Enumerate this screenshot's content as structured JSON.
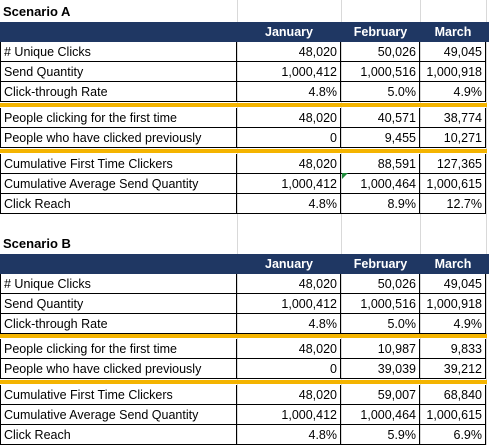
{
  "columns": [
    "January",
    "February",
    "March"
  ],
  "scenario_a": {
    "title": "Scenario A",
    "block1": [
      {
        "label": "# Unique Clicks",
        "values": [
          "48,020",
          "50,026",
          "49,045"
        ]
      },
      {
        "label": "Send Quantity",
        "values": [
          "1,000,412",
          "1,000,516",
          "1,000,918"
        ]
      },
      {
        "label": "Click-through Rate",
        "values": [
          "4.8%",
          "5.0%",
          "4.9%"
        ]
      }
    ],
    "block2": [
      {
        "label": "People clicking for the first time",
        "values": [
          "48,020",
          "40,571",
          "38,774"
        ]
      },
      {
        "label": "People who have clicked previously",
        "values": [
          "0",
          "9,455",
          "10,271"
        ]
      }
    ],
    "block3": [
      {
        "label": "Cumulative First Time Clickers",
        "values": [
          "48,020",
          "88,591",
          "127,365"
        ]
      },
      {
        "label": "Cumulative Average Send Quantity",
        "values": [
          "1,000,412",
          "1,000,464",
          "1,000,615"
        ]
      },
      {
        "label": "Click Reach",
        "values": [
          "4.8%",
          "8.9%",
          "12.7%"
        ]
      }
    ]
  },
  "scenario_b": {
    "title": "Scenario B",
    "block1": [
      {
        "label": "# Unique Clicks",
        "values": [
          "48,020",
          "50,026",
          "49,045"
        ]
      },
      {
        "label": "Send Quantity",
        "values": [
          "1,000,412",
          "1,000,516",
          "1,000,918"
        ]
      },
      {
        "label": "Click-through Rate",
        "values": [
          "4.8%",
          "5.0%",
          "4.9%"
        ]
      }
    ],
    "block2": [
      {
        "label": "People clicking for the first time",
        "values": [
          "48,020",
          "10,987",
          "9,833"
        ]
      },
      {
        "label": "People who have clicked previously",
        "values": [
          "0",
          "39,039",
          "39,212"
        ]
      }
    ],
    "block3": [
      {
        "label": "Cumulative First Time Clickers",
        "values": [
          "48,020",
          "59,007",
          "68,840"
        ]
      },
      {
        "label": "Cumulative Average Send Quantity",
        "values": [
          "1,000,412",
          "1,000,464",
          "1,000,615"
        ]
      },
      {
        "label": "Click Reach",
        "values": [
          "4.8%",
          "5.9%",
          "6.9%"
        ]
      }
    ]
  },
  "colors": {
    "header": "#1f3763",
    "separator": "#f4b400",
    "error_indicator": "#1e8c3a"
  }
}
